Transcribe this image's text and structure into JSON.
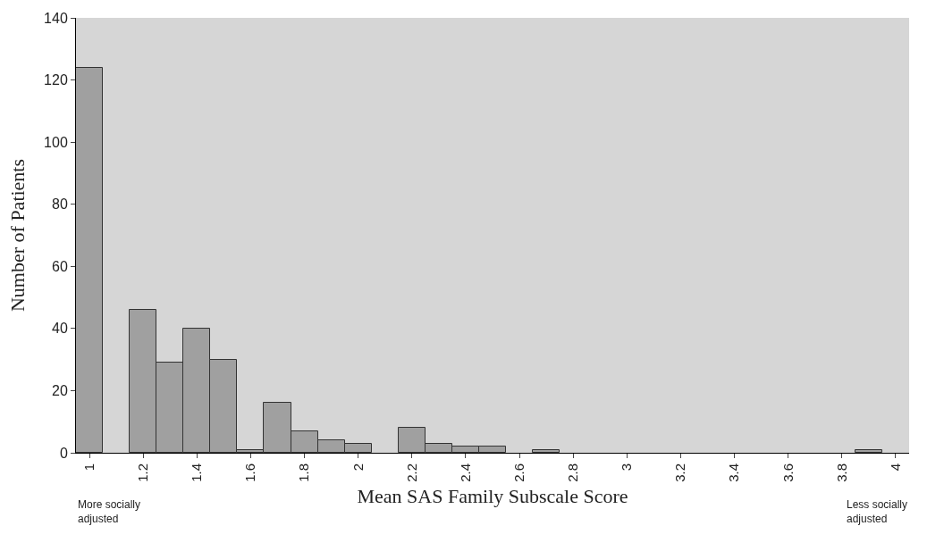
{
  "chart_data": {
    "type": "bar",
    "xlabel": "Mean SAS Family Subscale Score",
    "ylabel": "Number of Patients",
    "categories": [
      "1",
      null,
      "1.2",
      null,
      "1.4",
      null,
      "1.6",
      null,
      "1.8",
      null,
      "2",
      null,
      "2.2",
      null,
      "2.4",
      null,
      "2.6",
      null,
      "2.8",
      null,
      "3",
      null,
      "3.2",
      null,
      "3.4",
      null,
      "3.6",
      null,
      "3.8",
      null,
      "4"
    ],
    "values": [
      124,
      0,
      46,
      29,
      40,
      30,
      1,
      16,
      7,
      4,
      3,
      0,
      8,
      3,
      2,
      2,
      0,
      1,
      0,
      0,
      0,
      0,
      0,
      0,
      0,
      0,
      0,
      0,
      0,
      1,
      0
    ],
    "color": "#a0a0a0",
    "ylim": [
      0,
      140
    ],
    "yticks": [
      0,
      20,
      40,
      60,
      80,
      100,
      120,
      140
    ],
    "grid": false,
    "annotations": [
      "More socially adjusted",
      "Less socially adjusted"
    ]
  }
}
